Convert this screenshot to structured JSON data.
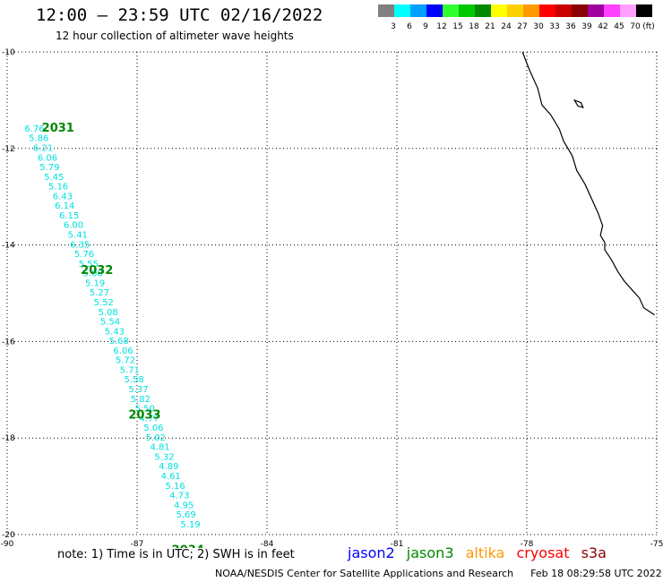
{
  "header": {
    "title": "12:00 – 23:59 UTC 02/16/2022",
    "subtitle": "12 hour collection of altimeter wave heights"
  },
  "colorbar": {
    "unit": "(ft)",
    "levels": [
      {
        "label": "3",
        "color": "#808080"
      },
      {
        "label": "6",
        "color": "#00ffff"
      },
      {
        "label": "9",
        "color": "#00a0ff"
      },
      {
        "label": "12",
        "color": "#0000ff"
      },
      {
        "label": "15",
        "color": "#30ff30"
      },
      {
        "label": "18",
        "color": "#00c800"
      },
      {
        "label": "21",
        "color": "#008800"
      },
      {
        "label": "24",
        "color": "#ffff00"
      },
      {
        "label": "27",
        "color": "#ffd000"
      },
      {
        "label": "30",
        "color": "#ff9900"
      },
      {
        "label": "33",
        "color": "#ff0000"
      },
      {
        "label": "36",
        "color": "#c80000"
      },
      {
        "label": "39",
        "color": "#880000"
      },
      {
        "label": "42",
        "color": "#a000a0"
      },
      {
        "label": "45",
        "color": "#ff40ff"
      },
      {
        "label": "70",
        "color": "#ffa0ff"
      },
      {
        "label": "",
        "color": "#000000"
      }
    ]
  },
  "map": {
    "lon_range": [
      -90,
      -75
    ],
    "lat_range": [
      -20,
      -10
    ],
    "lon_ticks": [
      "-90",
      "-87",
      "-84",
      "-81",
      "-78",
      "-75"
    ],
    "lat_ticks": [
      "-10",
      "-12",
      "-14",
      "-16",
      "-18",
      "-20"
    ],
    "lon_tick_values": [
      -90,
      -87,
      -84,
      -81,
      -78,
      -75
    ],
    "lat_tick_values": [
      -10,
      -12,
      -14,
      -16,
      -18,
      -20
    ],
    "track_color": "#00e0e0",
    "pass_label_color": "#008800",
    "pass_labels": [
      {
        "text": "2031",
        "lon": -89.2,
        "lat": -11.65
      },
      {
        "text": "2032",
        "lon": -88.3,
        "lat": -14.6
      },
      {
        "text": "2033",
        "lon": -87.2,
        "lat": -17.6
      },
      {
        "text": "2034",
        "lon": -86.2,
        "lat": -20.4
      }
    ],
    "wave_heights": [
      {
        "value": "6.76",
        "lon": -89.6,
        "lat": -11.65
      },
      {
        "value": "5.86",
        "lon": -89.5,
        "lat": -11.85
      },
      {
        "value": "6.21",
        "lon": -89.4,
        "lat": -12.05
      },
      {
        "value": "6.06",
        "lon": -89.3,
        "lat": -12.25
      },
      {
        "value": "5.79",
        "lon": -89.25,
        "lat": -12.45
      },
      {
        "value": "5.45",
        "lon": -89.15,
        "lat": -12.65
      },
      {
        "value": "5.16",
        "lon": -89.05,
        "lat": -12.85
      },
      {
        "value": "6.43",
        "lon": -88.95,
        "lat": -13.05
      },
      {
        "value": "6.14",
        "lon": -88.9,
        "lat": -13.25
      },
      {
        "value": "6.15",
        "lon": -88.8,
        "lat": -13.45
      },
      {
        "value": "6.00",
        "lon": -88.7,
        "lat": -13.65
      },
      {
        "value": "5.41",
        "lon": -88.6,
        "lat": -13.85
      },
      {
        "value": "6.35",
        "lon": -88.55,
        "lat": -14.05
      },
      {
        "value": "5.76",
        "lon": -88.45,
        "lat": -14.25
      },
      {
        "value": "5.55",
        "lon": -88.35,
        "lat": -14.45
      },
      {
        "value": "5.08",
        "lon": -88.25,
        "lat": -14.65
      },
      {
        "value": "5.19",
        "lon": -88.2,
        "lat": -14.85
      },
      {
        "value": "5.27",
        "lon": -88.1,
        "lat": -15.05
      },
      {
        "value": "5.52",
        "lon": -88.0,
        "lat": -15.25
      },
      {
        "value": "5.08",
        "lon": -87.9,
        "lat": -15.45
      },
      {
        "value": "5.54",
        "lon": -87.85,
        "lat": -15.65
      },
      {
        "value": "5.43",
        "lon": -87.75,
        "lat": -15.85
      },
      {
        "value": "5.68",
        "lon": -87.65,
        "lat": -16.05
      },
      {
        "value": "6.06",
        "lon": -87.55,
        "lat": -16.25
      },
      {
        "value": "5.72",
        "lon": -87.5,
        "lat": -16.45
      },
      {
        "value": "5.71",
        "lon": -87.4,
        "lat": -16.65
      },
      {
        "value": "5.58",
        "lon": -87.3,
        "lat": -16.85
      },
      {
        "value": "5.37",
        "lon": -87.2,
        "lat": -17.05
      },
      {
        "value": "5.82",
        "lon": -87.15,
        "lat": -17.25
      },
      {
        "value": "5.50",
        "lon": -87.05,
        "lat": -17.45
      },
      {
        "value": "4.77",
        "lon": -86.95,
        "lat": -17.65
      },
      {
        "value": "5.06",
        "lon": -86.85,
        "lat": -17.85
      },
      {
        "value": "5.02",
        "lon": -86.8,
        "lat": -18.05
      },
      {
        "value": "4.81",
        "lon": -86.7,
        "lat": -18.25
      },
      {
        "value": "5.32",
        "lon": -86.6,
        "lat": -18.45
      },
      {
        "value": "4.89",
        "lon": -86.5,
        "lat": -18.65
      },
      {
        "value": "4.61",
        "lon": -86.45,
        "lat": -18.85
      },
      {
        "value": "5.16",
        "lon": -86.35,
        "lat": -19.05
      },
      {
        "value": "4.73",
        "lon": -86.25,
        "lat": -19.25
      },
      {
        "value": "4.95",
        "lon": -86.15,
        "lat": -19.45
      },
      {
        "value": "5.69",
        "lon": -86.1,
        "lat": -19.65
      },
      {
        "value": "5.19",
        "lon": -86.0,
        "lat": -19.85
      }
    ],
    "coastline": [
      [
        -78.1,
        -10.0
      ],
      [
        -77.95,
        -10.35
      ],
      [
        -77.75,
        -10.75
      ],
      [
        -77.65,
        -11.1
      ],
      [
        -77.45,
        -11.3
      ],
      [
        -77.25,
        -11.6
      ],
      [
        -77.15,
        -11.85
      ],
      [
        -76.95,
        -12.15
      ],
      [
        -76.85,
        -12.45
      ],
      [
        -76.65,
        -12.75
      ],
      [
        -76.5,
        -13.05
      ],
      [
        -76.35,
        -13.35
      ],
      [
        -76.25,
        -13.6
      ],
      [
        -76.3,
        -13.8
      ],
      [
        -76.2,
        -13.95
      ],
      [
        -76.2,
        -14.1
      ],
      [
        -76.05,
        -14.3
      ],
      [
        -75.9,
        -14.55
      ],
      [
        -75.75,
        -14.75
      ],
      [
        -75.55,
        -14.95
      ],
      [
        -75.4,
        -15.1
      ],
      [
        -75.3,
        -15.3
      ],
      [
        -75.05,
        -15.45
      ]
    ],
    "island": [
      [
        -76.9,
        -11.0
      ],
      [
        -76.75,
        -11.05
      ],
      [
        -76.7,
        -11.15
      ],
      [
        -76.82,
        -11.12
      ],
      [
        -76.9,
        -11.0
      ]
    ]
  },
  "note": "note: 1) Time is in UTC; 2) SWH is in feet",
  "satellites": [
    {
      "label": "jason2",
      "color": "#0000ff"
    },
    {
      "label": "jason3",
      "color": "#008800"
    },
    {
      "label": "altika",
      "color": "#ff9900"
    },
    {
      "label": "cryosat",
      "color": "#ff0000"
    },
    {
      "label": "s3a",
      "color": "#880000"
    }
  ],
  "footer": {
    "credit": "NOAA/NESDIS Center for Satellite Applications and Research",
    "timestamp": "Feb 18 08:29:58 UTC 2022"
  }
}
